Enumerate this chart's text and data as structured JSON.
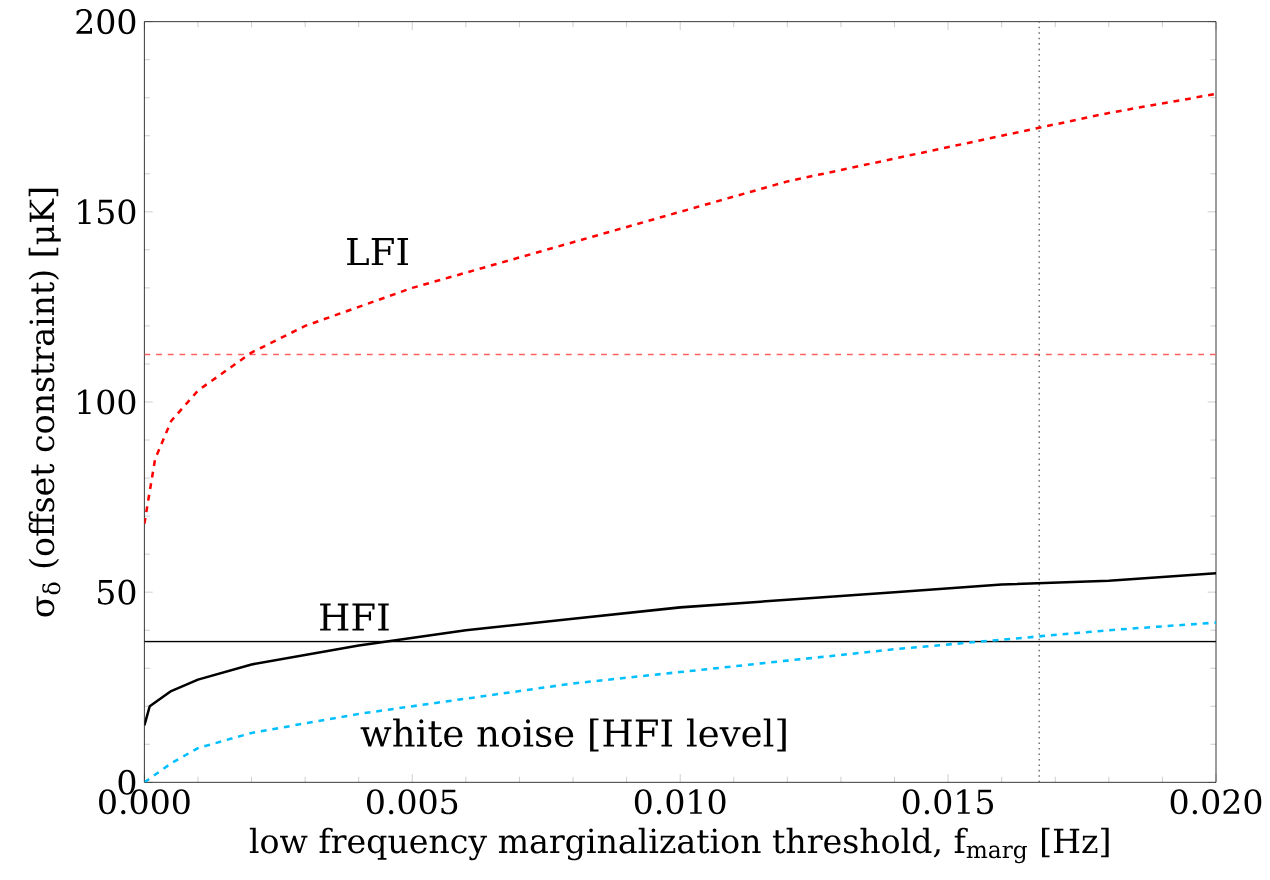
{
  "chart_data": {
    "type": "line",
    "xlabel": "low frequency marginalization threshold, f$_{marg}$ [Hz]",
    "ylabel": "σ$_{δ}$  (offset constraint) [μK]",
    "xlim": [
      0,
      0.02
    ],
    "ylim": [
      0,
      200
    ],
    "xticks": [
      {
        "value": 0,
        "label": "0.000"
      },
      {
        "value": 0.005,
        "label": "0.005"
      },
      {
        "value": 0.01,
        "label": "0.010"
      },
      {
        "value": 0.015,
        "label": "0.015"
      },
      {
        "value": 0.02,
        "label": "0.020"
      }
    ],
    "yticks": [
      0,
      50,
      100,
      150,
      200
    ],
    "series": [
      {
        "name": "LFI",
        "color": "#ff0000",
        "line_style": "dashed",
        "x": [
          0,
          0.0002,
          0.0005,
          0.001,
          0.002,
          0.003,
          0.004,
          0.005,
          0.006,
          0.008,
          0.01,
          0.012,
          0.014,
          0.016,
          0.018,
          0.02
        ],
        "values": [
          68,
          85,
          95,
          103,
          113,
          120,
          125,
          130,
          134,
          142,
          150,
          158,
          164,
          170,
          176,
          181
        ]
      },
      {
        "name": "HFI",
        "color": "#000000",
        "line_style": "solid",
        "x": [
          0,
          0.0001,
          0.0005,
          0.001,
          0.002,
          0.004,
          0.006,
          0.008,
          0.01,
          0.012,
          0.014,
          0.016,
          0.018,
          0.02
        ],
        "values": [
          15,
          20,
          24,
          27,
          31,
          36,
          40,
          43,
          46,
          48,
          50,
          52,
          53,
          55
        ]
      },
      {
        "name": "white noise [HFI level]",
        "color": "#00bfff",
        "line_style": "dashed",
        "x": [
          0,
          0.0005,
          0.001,
          0.002,
          0.004,
          0.006,
          0.008,
          0.01,
          0.012,
          0.014,
          0.016,
          0.018,
          0.02
        ],
        "values": [
          0,
          5,
          9,
          13,
          18,
          22,
          26,
          29,
          32,
          35,
          37.5,
          40,
          42
        ]
      }
    ],
    "ref_lines": [
      {
        "axis": "y",
        "value": 112.5,
        "color": "#ff6060",
        "line_style": "dashed"
      },
      {
        "axis": "y",
        "value": 37,
        "color": "#000000",
        "line_style": "solid"
      },
      {
        "axis": "x",
        "value": 0.0167,
        "color": "#707070",
        "line_style": "dotted"
      }
    ]
  }
}
